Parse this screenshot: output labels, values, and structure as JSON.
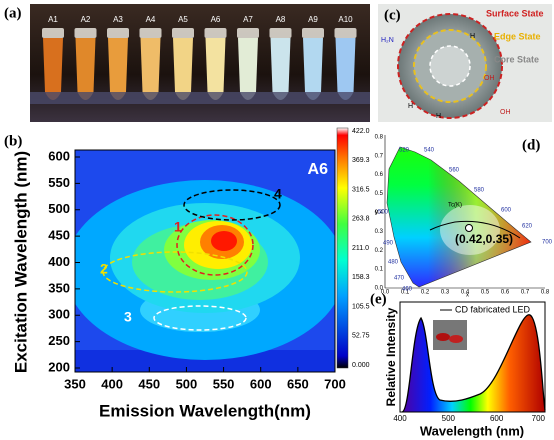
{
  "panel_a": {
    "label": "(a)",
    "samples": [
      "A1",
      "A2",
      "A3",
      "A4",
      "A5",
      "A6",
      "A7",
      "A8",
      "A9",
      "A10"
    ]
  },
  "panel_b": {
    "label": "(b)",
    "tag": "A6",
    "x_label": "Emission Wavelength(nm)",
    "y_label": "Excitation Wavelength (nm)",
    "x_ticks": [
      "350",
      "400",
      "450",
      "500",
      "550",
      "600",
      "650",
      "700"
    ],
    "y_ticks": [
      "200",
      "250",
      "300",
      "350",
      "400",
      "450",
      "500",
      "550",
      "600"
    ],
    "colorbar_ticks": [
      "422.0",
      "369.3",
      "316.5",
      "263.8",
      "211.0",
      "158.3",
      "105.5",
      "52.75",
      "0.000"
    ],
    "regions": [
      "1",
      "2",
      "3",
      "4"
    ]
  },
  "panel_c": {
    "label": "(c)",
    "states": [
      "Surface State",
      "Edge State",
      "Core State"
    ],
    "groups": [
      "H₂N",
      "H",
      "OH",
      "H",
      "H",
      "OH"
    ]
  },
  "panel_d": {
    "label": "(d)",
    "point_label": "(0.42,0.35)",
    "cct_label": "Tc(K)",
    "x_axis": "x",
    "y_axis": "y",
    "x_ticks": [
      "0.0",
      "0.1",
      "0.2",
      "0.3",
      "0.4",
      "0.5",
      "0.6",
      "0.7",
      "0.8"
    ],
    "y_ticks": [
      "0.0",
      "0.1",
      "0.2",
      "0.3",
      "0.4",
      "0.5",
      "0.6",
      "0.7",
      "0.8"
    ],
    "wavelengths": [
      "460",
      "470",
      "480",
      "490",
      "500",
      "520",
      "540",
      "560",
      "580",
      "600",
      "620",
      "700"
    ]
  },
  "panel_e": {
    "label": "(e)",
    "legend": "CD fabricated LED",
    "x_label": "Wavelength (nm)",
    "y_label": "Relative Intensity",
    "x_ticks": [
      "400",
      "500",
      "600",
      "700"
    ]
  }
}
